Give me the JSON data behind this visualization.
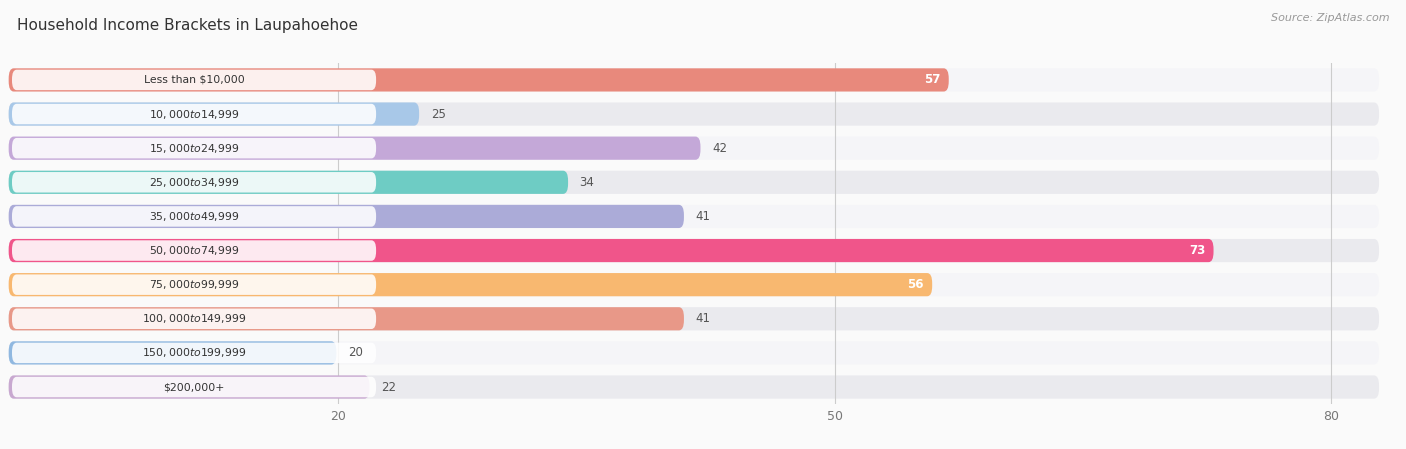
{
  "title": "Household Income Brackets in Laupahoehoe",
  "source": "Source: ZipAtlas.com",
  "categories": [
    "Less than $10,000",
    "$10,000 to $14,999",
    "$15,000 to $24,999",
    "$25,000 to $34,999",
    "$35,000 to $49,999",
    "$50,000 to $74,999",
    "$75,000 to $99,999",
    "$100,000 to $149,999",
    "$150,000 to $199,999",
    "$200,000+"
  ],
  "values": [
    57,
    25,
    42,
    34,
    41,
    73,
    56,
    41,
    20,
    22
  ],
  "bar_colors": [
    "#E8897C",
    "#A8C8E8",
    "#C4A8D8",
    "#6ECCC4",
    "#ABABD8",
    "#F0558A",
    "#F8B870",
    "#E89888",
    "#90B8E0",
    "#C8A8D0"
  ],
  "row_bg_color": "#E8E8EC",
  "row_bg_odd": "#F5F5F8",
  "row_bg_even": "#EAEAEE",
  "white_bg": "#FAFAFA",
  "xlim_data": [
    0,
    83
  ],
  "xticks": [
    20,
    50,
    80
  ],
  "value_label_inside": [
    true,
    false,
    false,
    false,
    false,
    true,
    true,
    false,
    false,
    false
  ],
  "fig_bg": "#FAFAFA",
  "title_fontsize": 11,
  "source_fontsize": 8
}
